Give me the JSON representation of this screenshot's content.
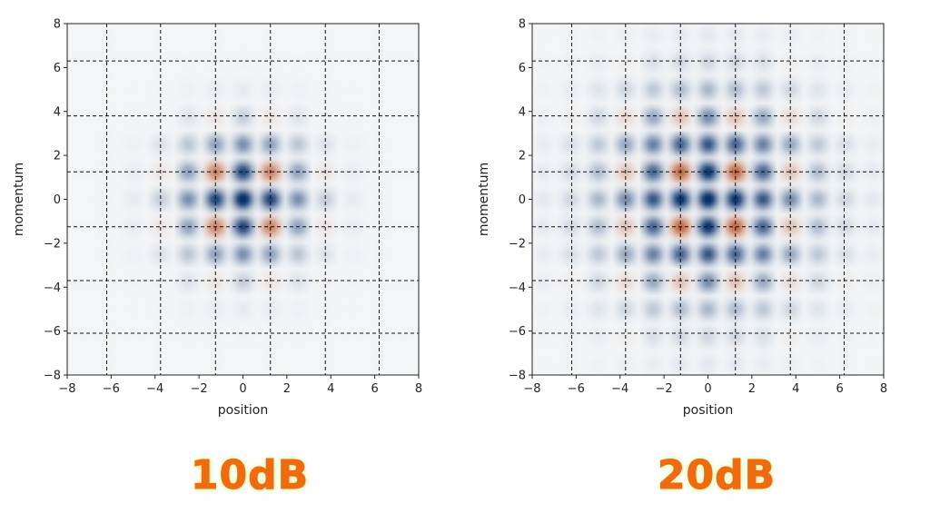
{
  "chart_data": [
    {
      "type": "heatmap",
      "title": "",
      "xlabel": "position",
      "ylabel": "momentum",
      "xlim": [
        -8,
        8
      ],
      "ylim": [
        -8,
        8
      ],
      "xticks": [
        -8,
        -6,
        -4,
        -2,
        0,
        2,
        4,
        6,
        8
      ],
      "yticks": [
        -8,
        -6,
        -4,
        -2,
        0,
        2,
        4,
        6,
        8
      ],
      "colormap": {
        "positive": "#08306b",
        "negative": "#b4481b",
        "zero": "#f3f5f7"
      },
      "peak_spacing": 1.25,
      "envelope_sigma": 1.8,
      "vertical_dashed_lines": [
        -6.2,
        -3.75,
        -1.25,
        1.25,
        3.75,
        6.2
      ],
      "horizontal_dashed_lines": [
        6.3,
        3.8,
        1.25,
        -1.25,
        -3.7,
        -6.1
      ],
      "caption": "10dB"
    },
    {
      "type": "heatmap",
      "title": "",
      "xlabel": "position",
      "ylabel": "momentum",
      "xlim": [
        -8,
        8
      ],
      "ylim": [
        -8,
        8
      ],
      "xticks": [
        -8,
        -6,
        -4,
        -2,
        0,
        2,
        4,
        6,
        8
      ],
      "yticks": [
        -8,
        -6,
        -4,
        -2,
        0,
        2,
        4,
        6,
        8
      ],
      "colormap": {
        "positive": "#08306b",
        "negative": "#b4481b",
        "zero": "#f3f5f7"
      },
      "peak_spacing": 1.25,
      "envelope_sigma": 2.8,
      "vertical_dashed_lines": [
        -6.2,
        -3.75,
        -1.25,
        1.25,
        3.75,
        6.2
      ],
      "horizontal_dashed_lines": [
        6.3,
        3.8,
        1.25,
        -1.25,
        -3.7,
        -6.1
      ],
      "caption": "20dB"
    }
  ]
}
